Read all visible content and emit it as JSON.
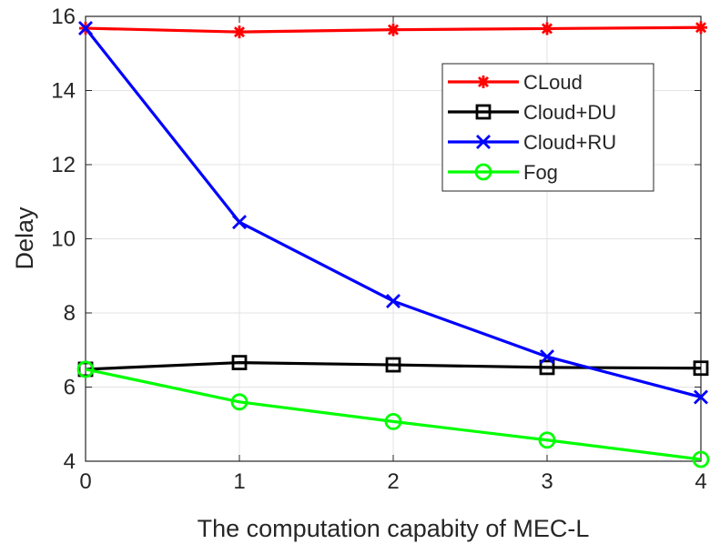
{
  "chart_data": {
    "type": "line",
    "title": "",
    "xlabel": "The computation capabity of MEC-L",
    "ylabel": "Delay",
    "xlim": [
      0,
      4
    ],
    "ylim": [
      4,
      16
    ],
    "xticks": [
      0,
      1,
      2,
      3,
      4
    ],
    "yticks": [
      4,
      6,
      8,
      10,
      12,
      14,
      16
    ],
    "grid": true,
    "legend_position": "top-right",
    "x": [
      0,
      1,
      2,
      3,
      4
    ],
    "series": [
      {
        "name": "CLoud",
        "color": "#ff0000",
        "marker": "asterisk",
        "values": [
          15.68,
          15.58,
          15.64,
          15.67,
          15.7
        ]
      },
      {
        "name": "Cloud+DU",
        "color": "#000000",
        "marker": "square",
        "values": [
          6.48,
          6.66,
          6.6,
          6.53,
          6.51
        ]
      },
      {
        "name": "Cloud+RU",
        "color": "#0000ff",
        "marker": "x",
        "values": [
          15.68,
          10.45,
          8.32,
          6.82,
          5.73
        ]
      },
      {
        "name": "Fog",
        "color": "#00ff00",
        "marker": "circle",
        "values": [
          6.48,
          5.6,
          5.07,
          4.57,
          4.05
        ]
      }
    ]
  }
}
